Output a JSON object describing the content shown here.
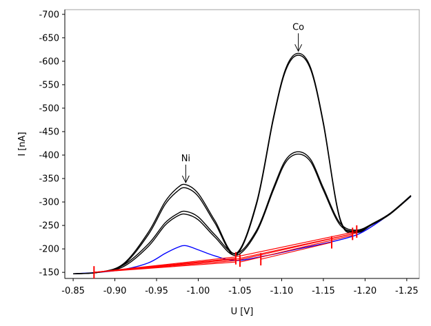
{
  "chart_data": {
    "type": "line",
    "title": "",
    "xlabel": "U [V]",
    "ylabel": "I [nA]",
    "x_reversed": true,
    "y_reversed": true,
    "xlim": [
      -0.84,
      -1.265
    ],
    "ylim": [
      -137,
      -710
    ],
    "x_ticks": [
      -0.85,
      -0.9,
      -0.95,
      -1.0,
      -1.05,
      -1.1,
      -1.15,
      -1.2,
      -1.25
    ],
    "x_tick_labels": [
      "-0.85",
      "-0.90",
      "-0.95",
      "-1.00",
      "-1.05",
      "-1.10",
      "-1.15",
      "-1.20",
      "-1.25"
    ],
    "y_ticks": [
      -150,
      -200,
      -250,
      -300,
      -350,
      -400,
      -450,
      -500,
      -550,
      -600,
      -650,
      -700
    ],
    "y_tick_labels": [
      "-150",
      "-200",
      "-250",
      "-300",
      "-350",
      "-400",
      "-450",
      "-500",
      "-550",
      "-600",
      "-650",
      "-700"
    ],
    "grid": false,
    "legend": "none",
    "annotations": [
      {
        "text": "Ni",
        "x": -0.985,
        "y": -337
      },
      {
        "text": "Co",
        "x": -1.12,
        "y": -617
      }
    ],
    "series": [
      {
        "color": "#0000ff",
        "x": [
          -0.85,
          -0.88,
          -0.91,
          -0.94,
          -0.96,
          -0.975,
          -0.985,
          -1.0,
          -1.02,
          -1.045,
          -1.08,
          -1.12,
          -1.16,
          -1.19,
          -1.21,
          -1.23,
          -1.255
        ],
        "y": [
          -147,
          -150,
          -156,
          -170,
          -190,
          -203,
          -207,
          -198,
          -185,
          -175,
          -185,
          -200,
          -215,
          -230,
          -250,
          -275,
          -312
        ]
      },
      {
        "color": "#000000",
        "x": [
          -0.85,
          -0.88,
          -0.91,
          -0.94,
          -0.96,
          -0.975,
          -0.985,
          -1.0,
          -1.02,
          -1.045,
          -1.07,
          -1.09,
          -1.105,
          -1.12,
          -1.135,
          -1.15,
          -1.17,
          -1.19,
          -1.21,
          -1.23,
          -1.255
        ],
        "y": [
          -147,
          -150,
          -165,
          -210,
          -255,
          -275,
          -280,
          -268,
          -230,
          -190,
          -240,
          -330,
          -390,
          -407,
          -390,
          -330,
          -255,
          -240,
          -255,
          -275,
          -313
        ]
      },
      {
        "color": "#000000",
        "x": [
          -0.85,
          -0.88,
          -0.91,
          -0.94,
          -0.96,
          -0.975,
          -0.985,
          -1.0,
          -1.02,
          -1.045,
          -1.07,
          -1.09,
          -1.105,
          -1.12,
          -1.135,
          -1.15,
          -1.17,
          -1.19,
          -1.21,
          -1.23,
          -1.255
        ],
        "y": [
          -147,
          -150,
          -162,
          -205,
          -250,
          -270,
          -274,
          -262,
          -225,
          -186,
          -236,
          -325,
          -385,
          -402,
          -385,
          -325,
          -251,
          -238,
          -253,
          -274,
          -312
        ]
      },
      {
        "color": "#000000",
        "x": [
          -0.85,
          -0.88,
          -0.91,
          -0.94,
          -0.96,
          -0.975,
          -0.985,
          -1.0,
          -1.02,
          -1.045,
          -1.07,
          -1.09,
          -1.105,
          -1.12,
          -1.135,
          -1.15,
          -1.17,
          -1.19,
          -1.21,
          -1.23,
          -1.255
        ],
        "y": [
          -147,
          -150,
          -168,
          -235,
          -300,
          -330,
          -337,
          -318,
          -260,
          -190,
          -300,
          -480,
          -585,
          -617,
          -585,
          -470,
          -265,
          -237,
          -255,
          -276,
          -314
        ]
      },
      {
        "color": "#000000",
        "x": [
          -0.85,
          -0.88,
          -0.91,
          -0.94,
          -0.96,
          -0.975,
          -0.985,
          -1.0,
          -1.02,
          -1.045,
          -1.07,
          -1.09,
          -1.105,
          -1.12,
          -1.135,
          -1.15,
          -1.17,
          -1.19,
          -1.21,
          -1.23,
          -1.255
        ],
        "y": [
          -147,
          -150,
          -166,
          -230,
          -294,
          -323,
          -330,
          -312,
          -255,
          -187,
          -296,
          -476,
          -581,
          -613,
          -581,
          -466,
          -262,
          -235,
          -254,
          -275,
          -313
        ]
      }
    ],
    "baselines": [
      {
        "color": "#ff0000",
        "x": [
          -0.875,
          -1.045
        ],
        "y": [
          -150,
          -180
        ]
      },
      {
        "color": "#ff0000",
        "x": [
          -0.875,
          -1.045
        ],
        "y": [
          -150,
          -175
        ]
      },
      {
        "color": "#ff0000",
        "x": [
          -0.875,
          -1.045
        ],
        "y": [
          -150,
          -178
        ]
      },
      {
        "color": "#ff0000",
        "x": [
          -0.875,
          -1.045
        ],
        "y": [
          -150,
          -183
        ]
      },
      {
        "color": "#ff0000",
        "x": [
          -0.875,
          -1.045
        ],
        "y": [
          -150,
          -172
        ]
      },
      {
        "color": "#ff0000",
        "x": [
          -1.045,
          -1.19
        ],
        "y": [
          -183,
          -237
        ]
      },
      {
        "color": "#ff0000",
        "x": [
          -1.045,
          -1.19
        ],
        "y": [
          -178,
          -234
        ]
      },
      {
        "color": "#ff0000",
        "x": [
          -1.045,
          -1.185
        ],
        "y": [
          -175,
          -232
        ]
      },
      {
        "color": "#ff0000",
        "x": [
          -1.05,
          -1.185
        ],
        "y": [
          -172,
          -229
        ]
      },
      {
        "color": "#ff0000",
        "x": [
          -1.075,
          -1.16
        ],
        "y": [
          -178,
          -214
        ]
      }
    ],
    "markers": [
      {
        "color": "#ff0000",
        "x": -0.875,
        "y": -150
      },
      {
        "color": "#ff0000",
        "x": -1.045,
        "y": -180
      },
      {
        "color": "#ff0000",
        "x": -1.05,
        "y": -175
      },
      {
        "color": "#ff0000",
        "x": -1.075,
        "y": -178
      },
      {
        "color": "#ff0000",
        "x": -1.16,
        "y": -214
      },
      {
        "color": "#ff0000",
        "x": -1.185,
        "y": -232
      },
      {
        "color": "#ff0000",
        "x": -1.19,
        "y": -237
      }
    ]
  }
}
